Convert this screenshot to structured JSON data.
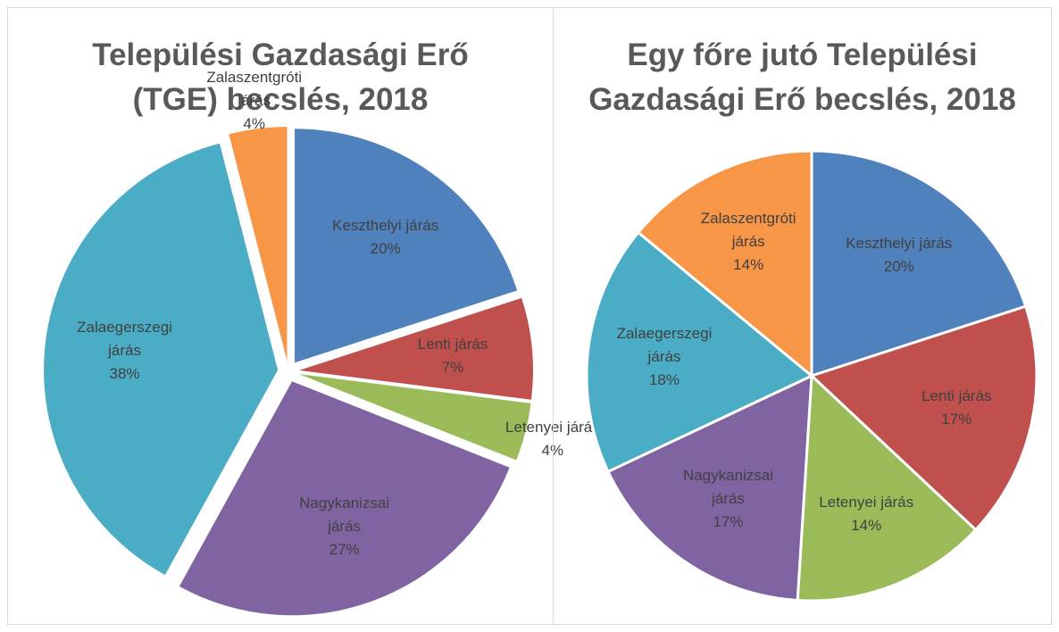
{
  "chart_data": [
    {
      "type": "pie",
      "title": "Települési Gazdasági Erő (TGE) becslés, 2018",
      "categories": [
        "Keszthelyi járás",
        "Lenti járás",
        "Letenyei járás",
        "Nagykanizsai járás",
        "Zalaegerszegi járás",
        "Zalaszentgróti járás"
      ],
      "values": [
        20,
        7,
        4,
        27,
        38,
        4
      ],
      "value_labels": [
        "20%",
        "7%",
        "4%",
        "27%",
        "38%",
        "4%"
      ],
      "colors": [
        "#4f81bd",
        "#c0504d",
        "#9bbb59",
        "#8064a2",
        "#4bacc6",
        "#f79646"
      ],
      "exploded": true
    },
    {
      "type": "pie",
      "title": "Egy főre jutó Települési Gazdasági Erő becslés, 2018",
      "categories": [
        "Keszthelyi járás",
        "Lenti járás",
        "Letenyei járás",
        "Nagykanizsai járás",
        "Zalaegerszegi járás",
        "Zalaszentgróti járás"
      ],
      "values": [
        20,
        17,
        14,
        17,
        18,
        14
      ],
      "value_labels": [
        "20%",
        "17%",
        "14%",
        "17%",
        "18%",
        "14%"
      ],
      "colors": [
        "#4f81bd",
        "#c0504d",
        "#9bbb59",
        "#8064a2",
        "#4bacc6",
        "#f79646"
      ],
      "exploded": false
    }
  ]
}
